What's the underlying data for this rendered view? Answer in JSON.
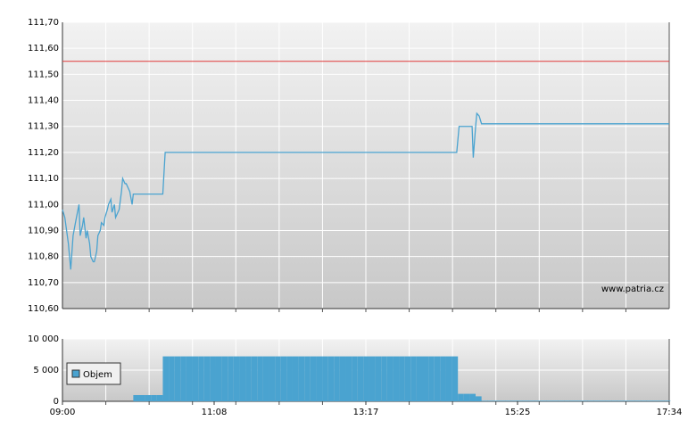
{
  "chart_data": [
    {
      "type": "line",
      "watermark": "www.patria.cz",
      "xlim": [
        0,
        514
      ],
      "ylim": [
        110.6,
        111.7
      ],
      "yticks": [
        {
          "value": 110.6,
          "label": "110,60"
        },
        {
          "value": 110.7,
          "label": "110,70"
        },
        {
          "value": 110.8,
          "label": "110,80"
        },
        {
          "value": 110.9,
          "label": "110,90"
        },
        {
          "value": 111.0,
          "label": "111,00"
        },
        {
          "value": 111.1,
          "label": "111,10"
        },
        {
          "value": 111.2,
          "label": "111,20"
        },
        {
          "value": 111.3,
          "label": "111,30"
        },
        {
          "value": 111.4,
          "label": "111,40"
        },
        {
          "value": 111.5,
          "label": "111,50"
        },
        {
          "value": 111.6,
          "label": "111,60"
        },
        {
          "value": 111.7,
          "label": "111,70"
        }
      ],
      "grid": true,
      "reference_line": {
        "value": 111.55,
        "color": "#e03a3a"
      },
      "x": [
        0,
        2,
        5,
        7,
        9,
        11,
        14,
        15,
        17,
        18,
        20,
        21,
        23,
        24,
        26,
        27,
        29,
        30,
        32,
        33,
        35,
        36,
        38,
        39,
        41,
        42,
        44,
        45,
        48,
        50,
        51,
        53,
        54,
        57,
        59,
        60,
        85,
        87,
        334,
        336,
        347,
        348,
        350,
        351,
        353,
        355,
        514
      ],
      "series": [
        {
          "color": "#4aa3d0",
          "values": [
            110.98,
            110.95,
            110.85,
            110.75,
            110.88,
            110.93,
            111.0,
            110.88,
            110.92,
            110.95,
            110.87,
            110.9,
            110.85,
            110.8,
            110.78,
            110.78,
            110.82,
            110.88,
            110.9,
            110.93,
            110.92,
            110.95,
            110.98,
            111.0,
            111.02,
            110.97,
            111.0,
            110.95,
            110.98,
            111.05,
            111.1,
            111.08,
            111.08,
            111.05,
            111.0,
            111.04,
            111.04,
            111.2,
            111.2,
            111.3,
            111.3,
            111.18,
            111.3,
            111.35,
            111.34,
            111.31,
            111.31
          ]
        }
      ]
    },
    {
      "type": "bar",
      "xlim": [
        0,
        514
      ],
      "xticks": [
        {
          "value": 0,
          "label": "09:00"
        },
        {
          "value": 128.5,
          "label": "11:08"
        },
        {
          "value": 257,
          "label": "13:17"
        },
        {
          "value": 385.5,
          "label": "15:25"
        },
        {
          "value": 514,
          "label": "17:34"
        }
      ],
      "ylim": [
        0,
        10000
      ],
      "yticks": [
        0,
        {
          "value": 5000,
          "label": "5 000"
        },
        {
          "value": 10000,
          "label": "10 000"
        }
      ],
      "grid": true,
      "legend": "left",
      "x": [
        60,
        65,
        70,
        75,
        80,
        85,
        90,
        95,
        100,
        105,
        110,
        115,
        120,
        125,
        130,
        135,
        140,
        145,
        150,
        155,
        160,
        165,
        170,
        175,
        180,
        185,
        190,
        195,
        200,
        205,
        210,
        215,
        220,
        225,
        230,
        235,
        240,
        245,
        250,
        255,
        260,
        265,
        270,
        275,
        280,
        285,
        290,
        295,
        300,
        305,
        310,
        315,
        320,
        325,
        330,
        335,
        340,
        345,
        350,
        355,
        360,
        365,
        370,
        375,
        380,
        385,
        390,
        395,
        400,
        405,
        410,
        415,
        420,
        425,
        430,
        435,
        440,
        445,
        450,
        455,
        460,
        465,
        470,
        475,
        480,
        485,
        490,
        495,
        500,
        505,
        510
      ],
      "series": [
        {
          "name": "Objem",
          "color": "#4aa3d0",
          "values": [
            1000,
            1000,
            1000,
            1000,
            1000,
            7200,
            7200,
            7200,
            7200,
            7200,
            7200,
            7200,
            7200,
            7200,
            7200,
            7200,
            7200,
            7200,
            7200,
            7200,
            7200,
            7200,
            7200,
            7200,
            7200,
            7200,
            7200,
            7200,
            7200,
            7200,
            7200,
            7200,
            7200,
            7200,
            7200,
            7200,
            7200,
            7200,
            7200,
            7200,
            7200,
            7200,
            7200,
            7200,
            7200,
            7200,
            7200,
            7200,
            7200,
            7200,
            7200,
            7200,
            7200,
            7200,
            7200,
            1200,
            1200,
            1200,
            800,
            100,
            100,
            100,
            100,
            100,
            100,
            100,
            100,
            100,
            100,
            100,
            100,
            100,
            100,
            100,
            100,
            100,
            100,
            100,
            100,
            100,
            100,
            100,
            100,
            100,
            100,
            100,
            100,
            100,
            100,
            100,
            100
          ]
        }
      ]
    }
  ]
}
